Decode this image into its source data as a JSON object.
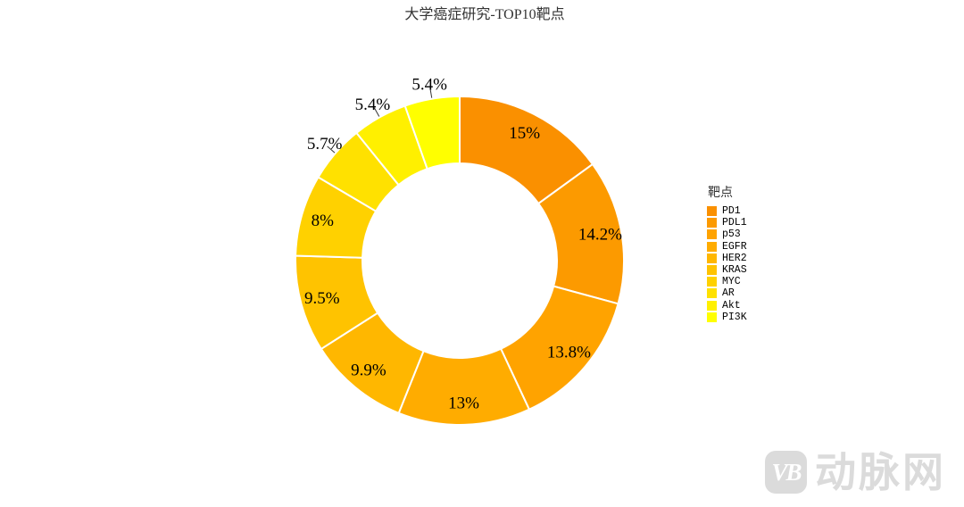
{
  "title": "大学癌症研究-TOP10靶点",
  "watermark": {
    "badge": "VB",
    "text": "动脉网"
  },
  "chart_data": {
    "type": "pie",
    "subtype": "donut",
    "title": "大学癌症研究-TOP10靶点",
    "legend_title": "靶点",
    "legend_position": "right",
    "start_angle_deg": 0,
    "clockwise": true,
    "inner_radius_ratio": 0.59,
    "categories": [
      "PD1",
      "PDL1",
      "p53",
      "EGFR",
      "HER2",
      "KRAS",
      "MYC",
      "AR",
      "Akt",
      "PI3K"
    ],
    "values": [
      15,
      14.2,
      13.8,
      13,
      9.9,
      9.5,
      8,
      5.7,
      5.4,
      5.4
    ],
    "labels": [
      "15%",
      "14.2%",
      "13.8%",
      "13%",
      "9.9%",
      "9.5%",
      "8%",
      "5.7%",
      "5.4%",
      "5.4%"
    ],
    "colors": [
      "#FA9000",
      "#FC9A00",
      "#FFA300",
      "#FFAC00",
      "#FFB700",
      "#FFC300",
      "#FFD100",
      "#FFE100",
      "#FFF000",
      "#FFFF00"
    ],
    "slice_border_color": "#ffffff",
    "label_color": "#000000"
  }
}
